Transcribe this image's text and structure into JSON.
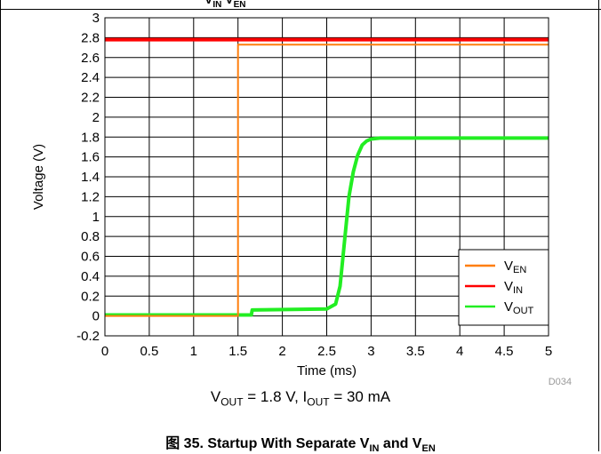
{
  "header_partial": {
    "prefix": "V",
    "sub1": "IN",
    "mid": " V",
    "sub2": "EN"
  },
  "chart_data": {
    "type": "line",
    "xlabel": "Time (ms)",
    "ylabel": "Voltage (V)",
    "xlim": [
      0,
      5
    ],
    "ylim": [
      -0.2,
      3
    ],
    "x_ticks": [
      "0",
      "0.5",
      "1",
      "1.5",
      "2",
      "2.5",
      "3",
      "3.5",
      "4",
      "4.5",
      "5"
    ],
    "y_ticks": [
      "-0.2",
      "0",
      "0.2",
      "0.4",
      "0.6",
      "0.8",
      "1",
      "1.2",
      "1.4",
      "1.6",
      "1.8",
      "2",
      "2.2",
      "2.4",
      "2.6",
      "2.8",
      "3"
    ],
    "grid": true,
    "legend_position": "bottom-right",
    "figure_id": "D034",
    "series": [
      {
        "name": "EN",
        "legend_main": "V",
        "legend_sub": "EN",
        "color": "#ff7f0e",
        "x": [
          0,
          1.5,
          1.5,
          5
        ],
        "y": [
          0,
          0,
          2.73,
          2.73
        ]
      },
      {
        "name": "IN",
        "legend_main": "V",
        "legend_sub": "IN",
        "color": "#ff0000",
        "x": [
          0,
          5
        ],
        "y": [
          2.78,
          2.78
        ]
      },
      {
        "name": "OUT",
        "legend_main": "V",
        "legend_sub": "OUT",
        "color": "#22ee22",
        "x": [
          0,
          1.65,
          1.66,
          2.5,
          2.6,
          2.65,
          2.7,
          2.75,
          2.8,
          2.85,
          2.9,
          2.95,
          3.0,
          3.1,
          3.3,
          5
        ],
        "y": [
          0.01,
          0.01,
          0.06,
          0.07,
          0.12,
          0.3,
          0.75,
          1.2,
          1.45,
          1.62,
          1.72,
          1.76,
          1.78,
          1.79,
          1.79,
          1.79
        ]
      }
    ]
  },
  "conditions": {
    "vout_main": "V",
    "vout_sub": "OUT",
    "vout_value": " = 1.8 V, I",
    "iout_sub": "OUT",
    "iout_value": " = 30 mA"
  },
  "caption": {
    "prefix": "图 35. Startup With Separate V",
    "sub1": "IN",
    "mid": " and V",
    "sub2": "EN"
  }
}
